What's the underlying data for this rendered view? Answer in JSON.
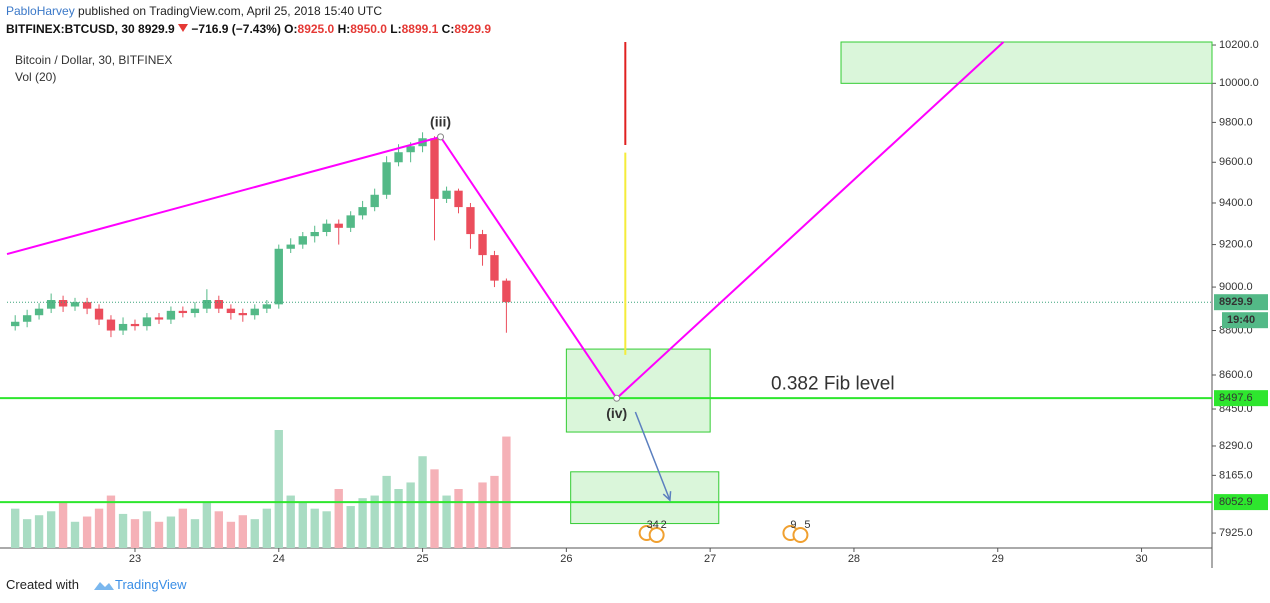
{
  "header": {
    "author": "PabloHarvey",
    "published": "published on TradingView.com, April 25, 2018 15:40 UTC",
    "symbol": "BITFINEX:BTCUSD, 30",
    "price": "8929.9",
    "change": "−716.9 (−7.43%)",
    "o_label": "O:",
    "o": "8925.0",
    "h_label": "H:",
    "h": "8950.0",
    "l_label": "L:",
    "l": "8899.1",
    "c_label": "C:",
    "c": "8929.9"
  },
  "footer": {
    "created": "Created with",
    "brand": "TradingView"
  },
  "chart_data": {
    "type": "candlestick",
    "title": "Bitcoin / Dollar, 30, BITFINEX",
    "volume_label": "Vol (20)",
    "log_scale": true,
    "grid": false,
    "up_color": "#53b987",
    "down_color": "#eb4d5c",
    "up_volume_color": "#a9dcc3",
    "down_volume_color": "#f5b1b7",
    "xlim": [
      22.11,
      30.49
    ],
    "xticks": [
      23,
      24,
      25,
      26,
      27,
      28,
      29,
      30
    ],
    "ylim": [
      7864,
      10216
    ],
    "yticks": [
      {
        "value": 10200,
        "label": "10200.0"
      },
      {
        "value": 10000,
        "label": "10000.0"
      },
      {
        "value": 9800,
        "label": "9800.0"
      },
      {
        "value": 9600,
        "label": "9600.0"
      },
      {
        "value": 9400,
        "label": "9400.0"
      },
      {
        "value": 9200,
        "label": "9200.0"
      },
      {
        "value": 9000,
        "label": "9000.0"
      },
      {
        "value": 8800,
        "label": "8800.0"
      },
      {
        "value": 8600,
        "label": "8600.0"
      },
      {
        "value": 8450,
        "label": "8450.0"
      },
      {
        "value": 8290,
        "label": "8290.0"
      },
      {
        "value": 8165,
        "label": "8165.0"
      },
      {
        "value": 7925,
        "label": "7925.0"
      }
    ],
    "x": [
      22.167,
      22.25,
      22.333,
      22.417,
      22.5,
      22.583,
      22.667,
      22.75,
      22.833,
      22.917,
      23.0,
      23.083,
      23.167,
      23.25,
      23.333,
      23.417,
      23.5,
      23.583,
      23.667,
      23.75,
      23.833,
      23.917,
      24.0,
      24.083,
      24.167,
      24.25,
      24.333,
      24.417,
      24.5,
      24.583,
      24.667,
      24.75,
      24.833,
      24.917,
      25.0,
      25.083,
      25.167,
      25.25,
      25.333,
      25.417,
      25.5,
      25.583
    ],
    "open": [
      8820,
      8840,
      8870,
      8900,
      8940,
      8910,
      8930,
      8900,
      8850,
      8800,
      8830,
      8820,
      8860,
      8850,
      8890,
      8880,
      8900,
      8940,
      8900,
      8880,
      8870,
      8900,
      8920,
      9180,
      9200,
      9240,
      9260,
      9300,
      9280,
      9340,
      9380,
      9440,
      9600,
      9650,
      9680,
      9720,
      9420,
      9460,
      9380,
      9250,
      9150,
      9030
    ],
    "high": [
      8870,
      8895,
      8925,
      8970,
      8960,
      8950,
      8950,
      8920,
      8870,
      8860,
      8850,
      8880,
      8880,
      8910,
      8910,
      8930,
      8990,
      8960,
      8920,
      8900,
      8920,
      8940,
      9200,
      9230,
      9260,
      9290,
      9320,
      9320,
      9360,
      9410,
      9470,
      9630,
      9690,
      9700,
      9750,
      9730,
      9480,
      9470,
      9400,
      9270,
      9170,
      9040
    ],
    "low": [
      8800,
      8815,
      8850,
      8880,
      8885,
      8890,
      8875,
      8825,
      8770,
      8780,
      8800,
      8800,
      8830,
      8830,
      8860,
      8860,
      8880,
      8880,
      8850,
      8840,
      8850,
      8880,
      8900,
      9160,
      9180,
      9210,
      9240,
      9200,
      9260,
      9320,
      9360,
      9420,
      9580,
      9600,
      9650,
      9220,
      9400,
      9350,
      9180,
      9100,
      9000,
      8790
    ],
    "close": [
      8840,
      8870,
      8900,
      8940,
      8910,
      8930,
      8900,
      8850,
      8800,
      8830,
      8820,
      8860,
      8850,
      8890,
      8880,
      8900,
      8940,
      8900,
      8880,
      8870,
      8900,
      8920,
      9180,
      9200,
      9240,
      9260,
      9300,
      9280,
      9340,
      9380,
      9440,
      9600,
      9650,
      9680,
      9720,
      9420,
      9460,
      9380,
      9250,
      9150,
      9030,
      8930
    ],
    "volume": [
      30,
      22,
      25,
      28,
      35,
      20,
      24,
      30,
      40,
      26,
      22,
      28,
      20,
      24,
      30,
      22,
      35,
      28,
      20,
      25,
      22,
      30,
      90,
      40,
      35,
      30,
      28,
      45,
      32,
      38,
      40,
      55,
      45,
      50,
      70,
      60,
      40,
      45,
      35,
      50,
      55,
      85
    ],
    "last_price": 8929.9,
    "last_time": "19:40",
    "levels": [
      8497.6,
      8052.9
    ],
    "level_color": "#2ee62e",
    "wave": {
      "x": [
        22.11,
        25.125,
        26.35,
        29.04
      ],
      "y": [
        9155,
        9727,
        8497,
        10216
      ],
      "color": "#ff00ff"
    },
    "annotations": [
      "(iii)",
      "(iv)",
      "0.382 Fib level"
    ],
    "boxes": [
      {
        "x": [
          26.0,
          27.0
        ],
        "y": [
          8350,
          8716
        ]
      },
      {
        "x": [
          26.03,
          27.06
        ],
        "y": [
          7964,
          8180
        ]
      },
      {
        "x": [
          27.91,
          30.49
        ],
        "y": [
          10000,
          10216
        ]
      }
    ],
    "box_color": "#33cc33",
    "vline": {
      "x": 26.41,
      "red": [
        9686,
        10216
      ],
      "yellow": [
        8690,
        9648
      ]
    },
    "arrow": {
      "x": [
        26.48,
        26.72
      ],
      "y": [
        8437,
        8061
      ],
      "color": "#5b7fbf"
    },
    "events": [
      {
        "x": 26.6,
        "labels": [
          "34",
          "2"
        ]
      },
      {
        "x": 27.6,
        "labels": [
          "9",
          "5"
        ]
      }
    ]
  }
}
